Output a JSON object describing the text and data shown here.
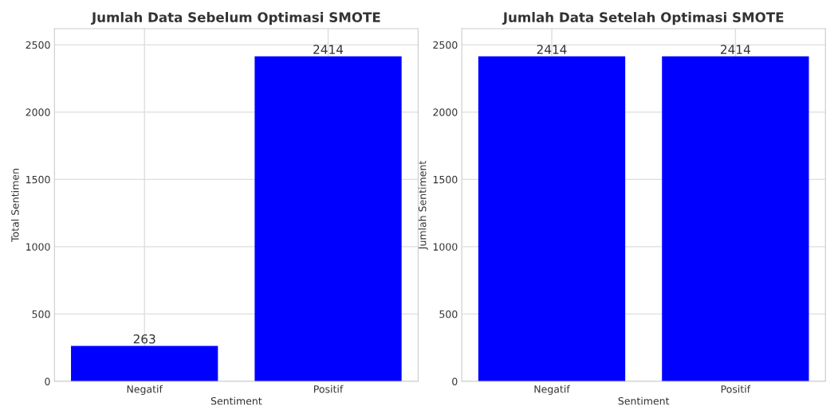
{
  "chart_data": [
    {
      "type": "bar",
      "title": "Jumlah Data Sebelum Optimasi SMOTE",
      "xlabel": "Sentiment",
      "ylabel": "Total Sentimen",
      "categories": [
        "Negatif",
        "Positif"
      ],
      "values": [
        263,
        2414
      ],
      "color": "#0000ff",
      "ylim": [
        0,
        2620
      ],
      "yticks": [
        0,
        500,
        1000,
        1500,
        2000,
        2500
      ],
      "grid": true,
      "data_labels": true
    },
    {
      "type": "bar",
      "title": "Jumlah Data Setelah Optimasi SMOTE",
      "xlabel": "Sentiment",
      "ylabel": "Jumlah Sentiment",
      "categories": [
        "Negatif",
        "Positif"
      ],
      "values": [
        2414,
        2414
      ],
      "color": "#0000ff",
      "ylim": [
        0,
        2620
      ],
      "yticks": [
        0,
        500,
        1000,
        1500,
        2000,
        2500
      ],
      "grid": true,
      "data_labels": true
    }
  ]
}
